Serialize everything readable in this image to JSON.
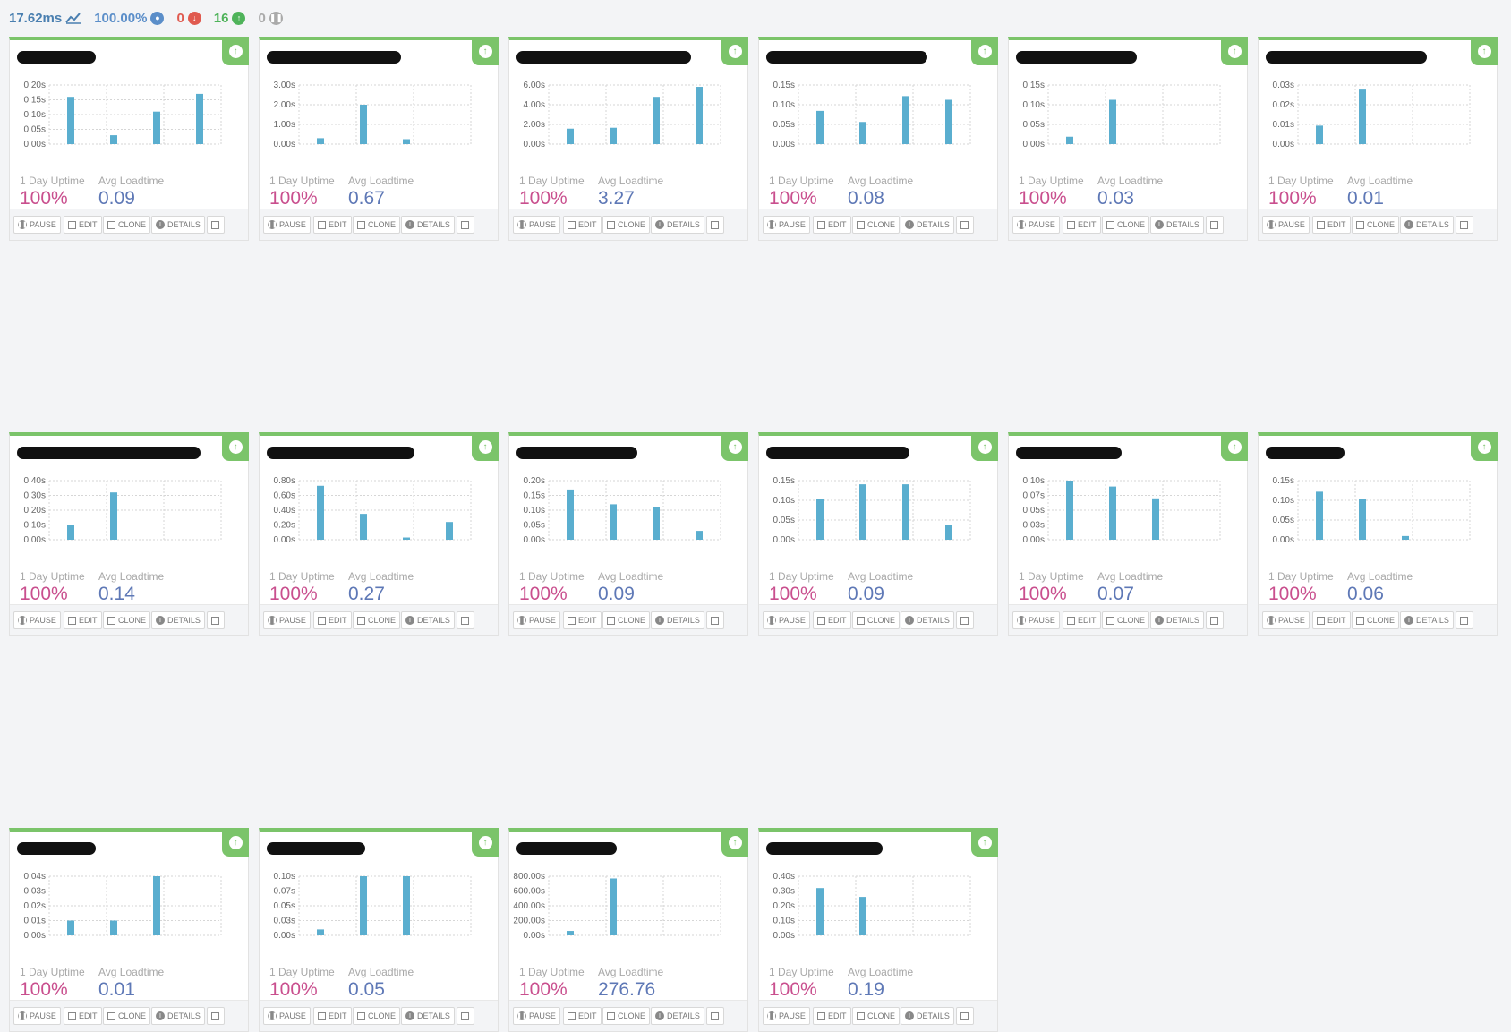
{
  "summary": {
    "response_time": "17.62ms",
    "uptime": "100.00%",
    "down_count": "0",
    "up_count": "16",
    "paused_count": "0",
    "colors": {
      "response": "#4a7fb0",
      "uptime": "#5b8ec9",
      "down": "#e05a4f",
      "up": "#4fb35a",
      "paused": "#aaaaaa"
    }
  },
  "labels": {
    "uptime": "1 Day Uptime",
    "loadtime": "Avg Loadtime",
    "pause": "PAUSE",
    "edit": "EDIT",
    "clone": "CLONE",
    "details": "DETAILS"
  },
  "colors": {
    "accent": "#7bc46a",
    "bar": "#5aaecf",
    "uptime_text": "#c94f8e",
    "loadtime_text": "#5e78b6"
  },
  "monitors": [
    {
      "uptime": "100%",
      "avg_loadtime": "0.09",
      "chart_data": {
        "type": "bar",
        "ticks": [
          "0.20s",
          "0.15s",
          "0.10s",
          "0.05s",
          "0.00s"
        ],
        "ylim": [
          0,
          0.2
        ],
        "values": [
          0.16,
          0.03,
          0.11,
          0.17
        ]
      }
    },
    {
      "uptime": "100%",
      "avg_loadtime": "0.67",
      "chart_data": {
        "type": "bar",
        "ticks": [
          "3.00s",
          "2.00s",
          "1.00s",
          "0.00s"
        ],
        "ylim": [
          0,
          3
        ],
        "values": [
          0.3,
          2.0,
          0.25
        ]
      }
    },
    {
      "uptime": "100%",
      "avg_loadtime": "3.27",
      "chart_data": {
        "type": "bar",
        "ticks": [
          "6.00s",
          "4.00s",
          "2.00s",
          "0.00s"
        ],
        "ylim": [
          0,
          6.5
        ],
        "values": [
          1.7,
          1.8,
          5.2,
          6.3
        ]
      }
    },
    {
      "uptime": "100%",
      "avg_loadtime": "0.08",
      "chart_data": {
        "type": "bar",
        "ticks": [
          "0.15s",
          "0.10s",
          "0.05s",
          "0.00s"
        ],
        "ylim": [
          0,
          0.16
        ],
        "values": [
          0.09,
          0.06,
          0.13,
          0.12
        ]
      }
    },
    {
      "uptime": "100%",
      "avg_loadtime": "0.03",
      "chart_data": {
        "type": "bar",
        "ticks": [
          "0.15s",
          "0.10s",
          "0.05s",
          "0.00s"
        ],
        "ylim": [
          0,
          0.16
        ],
        "values": [
          0.02,
          0.12
        ]
      }
    },
    {
      "uptime": "100%",
      "avg_loadtime": "0.01",
      "chart_data": {
        "type": "bar",
        "ticks": [
          "0.03s",
          "0.02s",
          "0.01s",
          "0.00s"
        ],
        "ylim": [
          0,
          0.032
        ],
        "values": [
          0.01,
          0.03
        ]
      }
    },
    {
      "uptime": "100%",
      "avg_loadtime": "0.14",
      "chart_data": {
        "type": "bar",
        "ticks": [
          "0.40s",
          "0.30s",
          "0.20s",
          "0.10s",
          "0.00s"
        ],
        "ylim": [
          0,
          0.4
        ],
        "values": [
          0.1,
          0.32
        ]
      }
    },
    {
      "uptime": "100%",
      "avg_loadtime": "0.27",
      "chart_data": {
        "type": "bar",
        "ticks": [
          "0.80s",
          "0.60s",
          "0.40s",
          "0.20s",
          "0.00s"
        ],
        "ylim": [
          0,
          0.8
        ],
        "values": [
          0.73,
          0.35,
          0.03,
          0.24
        ]
      }
    },
    {
      "uptime": "100%",
      "avg_loadtime": "0.09",
      "chart_data": {
        "type": "bar",
        "ticks": [
          "0.20s",
          "0.15s",
          "0.10s",
          "0.05s",
          "0.00s"
        ],
        "ylim": [
          0,
          0.2
        ],
        "values": [
          0.17,
          0.12,
          0.11,
          0.03
        ]
      }
    },
    {
      "uptime": "100%",
      "avg_loadtime": "0.09",
      "chart_data": {
        "type": "bar",
        "ticks": [
          "0.15s",
          "0.10s",
          "0.05s",
          "0.00s"
        ],
        "ylim": [
          0,
          0.16
        ],
        "values": [
          0.11,
          0.15,
          0.15,
          0.04
        ]
      }
    },
    {
      "uptime": "100%",
      "avg_loadtime": "0.07",
      "chart_data": {
        "type": "bar",
        "ticks": [
          "0.10s",
          "0.07s",
          "0.05s",
          "0.03s",
          "0.00s"
        ],
        "ylim": [
          0,
          0.1
        ],
        "values": [
          0.1,
          0.09,
          0.07
        ]
      }
    },
    {
      "uptime": "100%",
      "avg_loadtime": "0.06",
      "chart_data": {
        "type": "bar",
        "ticks": [
          "0.15s",
          "0.10s",
          "0.05s",
          "0.00s"
        ],
        "ylim": [
          0,
          0.16
        ],
        "values": [
          0.13,
          0.11,
          0.01
        ]
      }
    },
    {
      "uptime": "100%",
      "avg_loadtime": "0.01",
      "chart_data": {
        "type": "bar",
        "ticks": [
          "0.04s",
          "0.03s",
          "0.02s",
          "0.01s",
          "0.00s"
        ],
        "ylim": [
          0,
          0.04
        ],
        "values": [
          0.01,
          0.01,
          0.04
        ]
      }
    },
    {
      "uptime": "100%",
      "avg_loadtime": "0.05",
      "chart_data": {
        "type": "bar",
        "ticks": [
          "0.10s",
          "0.07s",
          "0.05s",
          "0.03s",
          "0.00s"
        ],
        "ylim": [
          0,
          0.1
        ],
        "values": [
          0.01,
          0.1,
          0.1
        ]
      }
    },
    {
      "uptime": "100%",
      "avg_loadtime": "276.76",
      "chart_data": {
        "type": "bar",
        "ticks": [
          "800.00s",
          "600.00s",
          "400.00s",
          "200.00s",
          "0.00s"
        ],
        "ylim": [
          0,
          800
        ],
        "values": [
          60,
          770
        ]
      }
    },
    {
      "uptime": "100%",
      "avg_loadtime": "0.19",
      "chart_data": {
        "type": "bar",
        "ticks": [
          "0.40s",
          "0.30s",
          "0.20s",
          "0.10s",
          "0.00s"
        ],
        "ylim": [
          0,
          0.4
        ],
        "values": [
          0.32,
          0.26
        ]
      }
    }
  ]
}
